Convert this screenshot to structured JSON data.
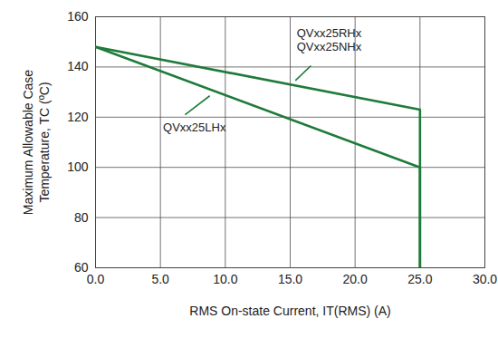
{
  "chart_data": {
    "type": "line",
    "x_label": "RMS On-state Current, IT(RMS) (A)",
    "y_label": "Maximum Allowable Case\nTemperature, TC (ºC)",
    "series": [
      {
        "name": "QVxx25RHx\nQVxx25NHx",
        "color": "#1e7b3a",
        "x": [
          0,
          25,
          25
        ],
        "values": [
          148,
          123,
          60
        ]
      },
      {
        "name": "QVxx25LHx",
        "color": "#1e7b3a",
        "x": [
          0,
          25,
          25
        ],
        "values": [
          148,
          100,
          60
        ]
      }
    ],
    "xlim": [
      0,
      30
    ],
    "xticks": [
      {
        "value": 0,
        "label": "0.0"
      },
      {
        "value": 5,
        "label": "5.0"
      },
      {
        "value": 10,
        "label": "10.0"
      },
      {
        "value": 15,
        "label": "15.0"
      },
      {
        "value": 20,
        "label": "20.0"
      },
      {
        "value": 25,
        "label": "25.0"
      },
      {
        "value": 30,
        "label": "30.0"
      }
    ],
    "ylim": [
      60,
      160
    ],
    "yticks": [
      60,
      80,
      100,
      120,
      140,
      160
    ],
    "grid": true
  }
}
